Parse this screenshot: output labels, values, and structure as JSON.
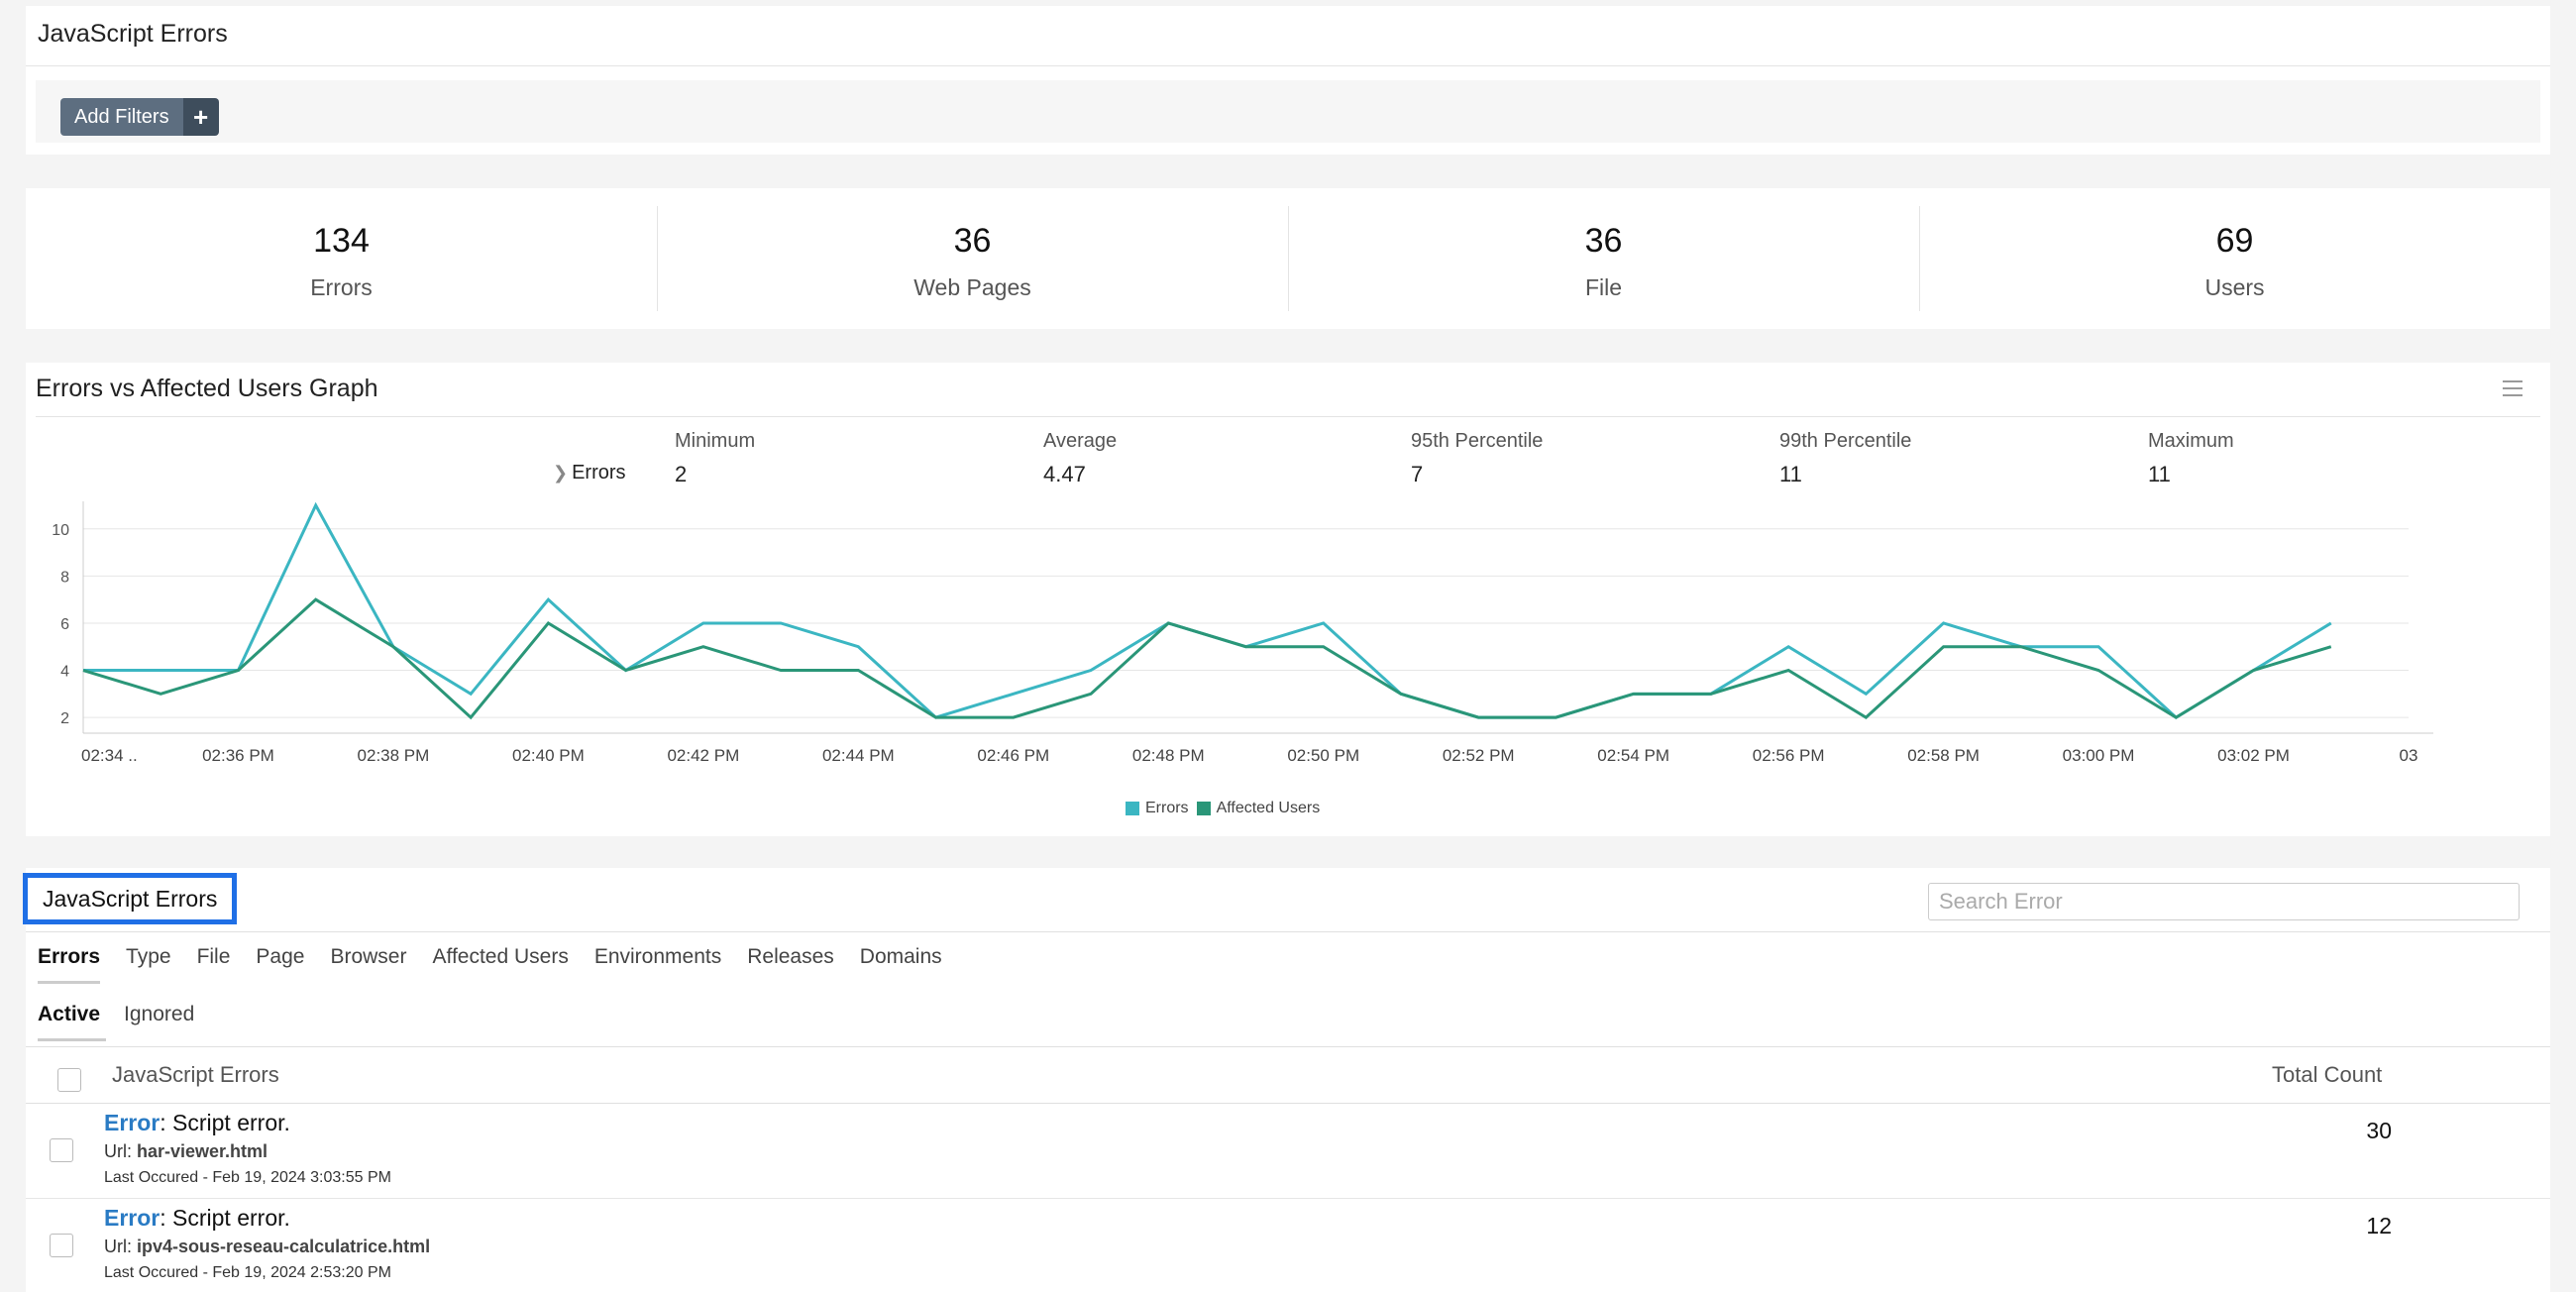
{
  "header": {
    "title": "JavaScript Errors",
    "add_filters_label": "Add Filters",
    "add_filters_icon": "plus-icon"
  },
  "stats": [
    {
      "value": "134",
      "label": "Errors"
    },
    {
      "value": "36",
      "label": "Web Pages"
    },
    {
      "value": "36",
      "label": "File"
    },
    {
      "value": "69",
      "label": "Users"
    }
  ],
  "graph": {
    "title": "Errors vs Affected Users Graph",
    "series_label": "Errors",
    "stat_headers": [
      "Minimum",
      "Average",
      "95th Percentile",
      "99th Percentile",
      "Maximum"
    ],
    "stat_values": [
      "2",
      "4.47",
      "7",
      "11",
      "11"
    ],
    "legend": [
      {
        "name": "Errors",
        "color": "#3bb6c2"
      },
      {
        "name": "Affected Users",
        "color": "#2a9678"
      }
    ]
  },
  "chart_data": {
    "type": "line",
    "x": [
      "02:34 ..",
      "02:35",
      "02:36 PM",
      "02:37",
      "02:38 PM",
      "02:39",
      "02:40 PM",
      "02:41",
      "02:42 PM",
      "02:43",
      "02:44 PM",
      "02:45",
      "02:46 PM",
      "02:47",
      "02:48 PM",
      "02:49",
      "02:50 PM",
      "02:51",
      "02:52 PM",
      "02:53",
      "02:54 PM",
      "02:55",
      "02:56 PM",
      "02:57",
      "02:58 PM",
      "02:59",
      "03:00 PM",
      "03:01",
      "03:02 PM",
      "03:03"
    ],
    "x_tick_labels": [
      "02:34 ..",
      "02:36 PM",
      "02:38 PM",
      "02:40 PM",
      "02:42 PM",
      "02:44 PM",
      "02:46 PM",
      "02:48 PM",
      "02:50 PM",
      "02:52 PM",
      "02:54 PM",
      "02:56 PM",
      "02:58 PM",
      "03:00 PM",
      "03:02 PM",
      "03"
    ],
    "series": [
      {
        "name": "Errors",
        "color": "#3bb6c2",
        "values": [
          4,
          4,
          4,
          11,
          5,
          3,
          7,
          4,
          6,
          6,
          5,
          2,
          3,
          4,
          6,
          5,
          6,
          3,
          2,
          2,
          3,
          3,
          5,
          3,
          6,
          5,
          5,
          2,
          4,
          6
        ]
      },
      {
        "name": "Affected Users",
        "color": "#2a9678",
        "values": [
          4,
          3,
          4,
          7,
          5,
          2,
          6,
          4,
          5,
          4,
          4,
          2,
          2,
          3,
          6,
          5,
          5,
          3,
          2,
          2,
          3,
          3,
          4,
          2,
          5,
          5,
          4,
          2,
          4,
          5
        ]
      }
    ],
    "y_ticks": [
      2,
      4,
      6,
      8,
      10
    ],
    "ylim": [
      1.5,
      11
    ],
    "grid": true,
    "legend_position": "bottom-center"
  },
  "list": {
    "title": "JavaScript Errors",
    "search_placeholder": "Search Error",
    "tabs": [
      "Errors",
      "Type",
      "File",
      "Page",
      "Browser",
      "Affected Users",
      "Environments",
      "Releases",
      "Domains"
    ],
    "subtabs": [
      "Active",
      "Ignored"
    ],
    "col_errors": "JavaScript Errors",
    "col_count": "Total Count",
    "rows": [
      {
        "type": "Error",
        "message": ": Script error.",
        "url_label": "Url: ",
        "url": "har-viewer.html",
        "last": "Last Occured - Feb 19, 2024 3:03:55 PM",
        "count": "30"
      },
      {
        "type": "Error",
        "message": ": Script error.",
        "url_label": "Url: ",
        "url": "ipv4-sous-reseau-calculatrice.html",
        "last": "Last Occured - Feb 19, 2024 2:53:20 PM",
        "count": "12"
      }
    ]
  }
}
